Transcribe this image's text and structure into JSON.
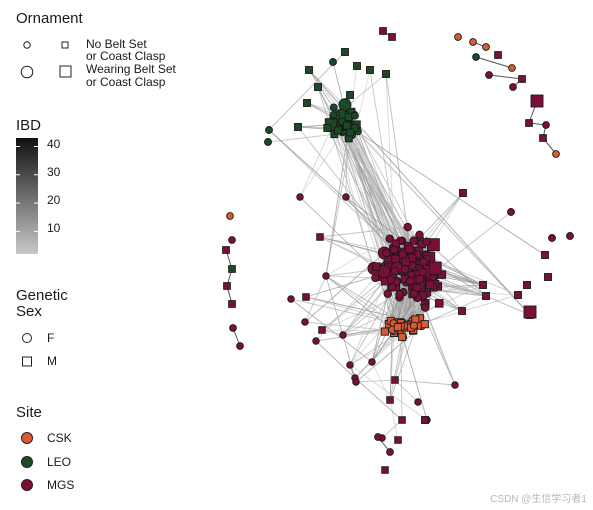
{
  "legend": {
    "ornament": {
      "title": "Ornament",
      "items": [
        {
          "label_line1": "No Belt Set",
          "label_line2": "or Coast Clasp"
        },
        {
          "label_line1": "Wearing Belt Set",
          "label_line2": "or Coast Clasp"
        }
      ]
    },
    "ibd": {
      "title": "IBD",
      "ticks": [
        "40",
        "30",
        "20",
        "10"
      ],
      "scale_min": 2,
      "scale_max": 43,
      "gradient_low": "#c8c8c8",
      "gradient_high": "#111111"
    },
    "genetic_sex": {
      "title_line1": "Genetic",
      "title_line2": "Sex",
      "items": [
        {
          "label": "F",
          "shape": "circle"
        },
        {
          "label": "M",
          "shape": "square"
        }
      ]
    },
    "site": {
      "title": "Site",
      "items": [
        {
          "label": "CSK",
          "color": "#d95a33"
        },
        {
          "label": "LEO",
          "color": "#1b4a26"
        },
        {
          "label": "MGS",
          "color": "#7a0f3a"
        }
      ]
    }
  },
  "colors": {
    "CSK": "#d95a33",
    "LEO": "#1b4a26",
    "MGS": "#7a0f3a",
    "node_stroke": "#1a1a1a"
  },
  "watermark": "CSDN @生信学习者1"
}
